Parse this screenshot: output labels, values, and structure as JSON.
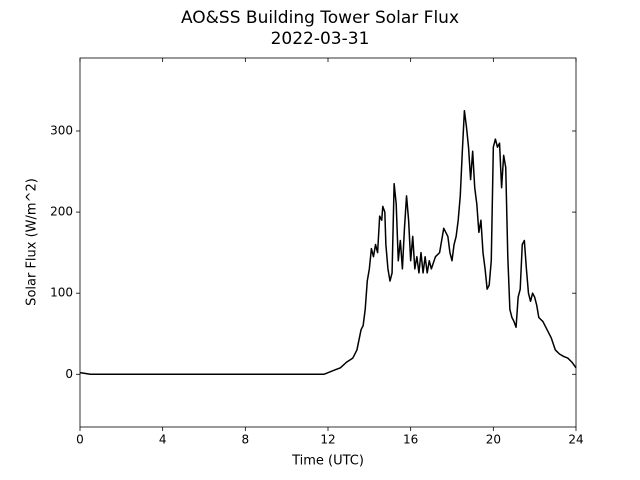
{
  "chart_data": {
    "type": "line",
    "title": "AO&SS Building Tower Solar Flux",
    "subtitle": "2022-03-31",
    "xlabel": "Time (UTC)",
    "ylabel": "Solar Flux (W/m^2)",
    "xlim": [
      0,
      24
    ],
    "xticks": [
      0,
      4,
      8,
      12,
      16,
      20,
      24
    ],
    "ylim": [
      -65,
      390
    ],
    "yticks": [
      0,
      100,
      200,
      300
    ],
    "color": "#000000",
    "x": [
      0,
      0.5,
      11.8,
      12,
      12.3,
      12.6,
      12.9,
      13.2,
      13.4,
      13.6,
      13.7,
      13.8,
      13.9,
      14.0,
      14.1,
      14.2,
      14.3,
      14.4,
      14.5,
      14.6,
      14.65,
      14.75,
      14.8,
      14.9,
      15.0,
      15.1,
      15.2,
      15.3,
      15.4,
      15.5,
      15.6,
      15.7,
      15.8,
      15.9,
      16.0,
      16.1,
      16.2,
      16.3,
      16.4,
      16.5,
      16.6,
      16.7,
      16.8,
      16.9,
      17.0,
      17.2,
      17.4,
      17.6,
      17.8,
      17.9,
      18.0,
      18.1,
      18.2,
      18.3,
      18.4,
      18.5,
      18.6,
      18.7,
      18.8,
      18.9,
      19.0,
      19.1,
      19.2,
      19.3,
      19.4,
      19.5,
      19.6,
      19.7,
      19.8,
      19.9,
      20.0,
      20.1,
      20.2,
      20.3,
      20.4,
      20.5,
      20.6,
      20.7,
      20.8,
      20.9,
      21.0,
      21.1,
      21.2,
      21.3,
      21.4,
      21.5,
      21.6,
      21.7,
      21.8,
      21.9,
      22.0,
      22.1,
      22.2,
      22.4,
      22.6,
      22.8,
      23.0,
      23.2,
      23.4,
      23.6,
      23.8,
      24
    ],
    "values": [
      2,
      0,
      0,
      2,
      5,
      8,
      15,
      20,
      30,
      55,
      60,
      80,
      115,
      130,
      155,
      145,
      160,
      150,
      195,
      190,
      207,
      200,
      160,
      130,
      115,
      125,
      235,
      210,
      140,
      165,
      130,
      180,
      220,
      190,
      140,
      170,
      130,
      145,
      125,
      150,
      125,
      145,
      125,
      140,
      130,
      145,
      150,
      180,
      170,
      150,
      140,
      160,
      170,
      190,
      220,
      275,
      325,
      305,
      280,
      240,
      275,
      230,
      210,
      175,
      190,
      150,
      130,
      105,
      110,
      140,
      280,
      290,
      280,
      285,
      230,
      270,
      255,
      145,
      80,
      70,
      65,
      58,
      95,
      105,
      160,
      165,
      130,
      100,
      90,
      100,
      95,
      85,
      70,
      65,
      55,
      45,
      30,
      25,
      22,
      20,
      15,
      8
    ]
  }
}
